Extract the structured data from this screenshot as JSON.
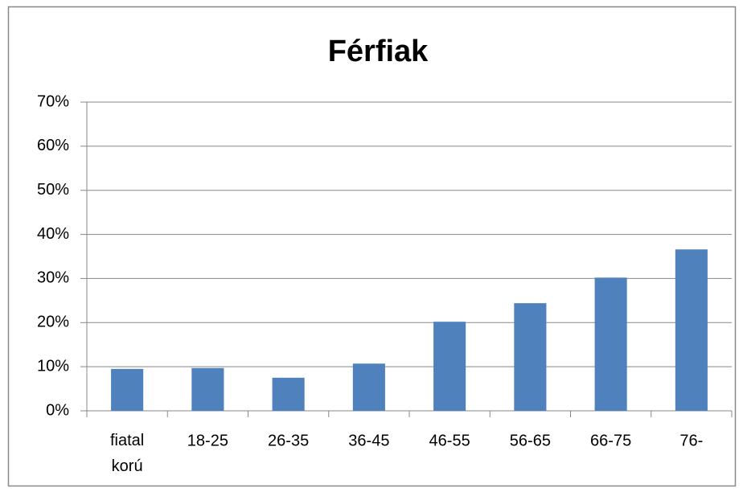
{
  "chart_data": {
    "type": "bar",
    "title": "Férfiak",
    "categories": [
      "fiatal korú",
      "18-25",
      "26-35",
      "36-45",
      "46-55",
      "56-65",
      "66-75",
      "76-"
    ],
    "values": [
      9.5,
      9.7,
      7.5,
      10.7,
      20.2,
      24.4,
      30.2,
      36.6
    ],
    "color": "#4f81bd",
    "ylim": [
      0,
      70
    ],
    "yticks": [
      {
        "value": 0,
        "label": "0%"
      },
      {
        "value": 10,
        "label": "10%"
      },
      {
        "value": 20,
        "label": "20%"
      },
      {
        "value": 30,
        "label": "30%"
      },
      {
        "value": 40,
        "label": "40%"
      },
      {
        "value": 50,
        "label": "50%"
      },
      {
        "value": 60,
        "label": "60%"
      },
      {
        "value": 70,
        "label": "70%"
      }
    ],
    "grid": true
  }
}
